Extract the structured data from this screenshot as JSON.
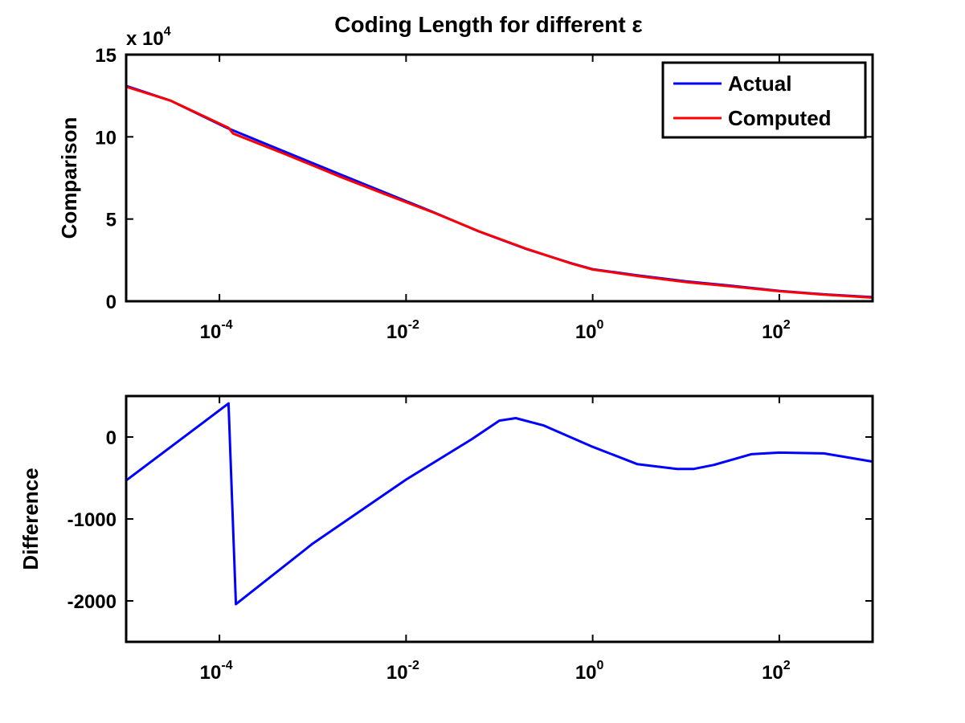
{
  "chart_data": [
    {
      "type": "line",
      "title": "Coding Length for different ε",
      "xlabel": "",
      "ylabel": "Comparison",
      "xscale": "log",
      "xlim": [
        1e-05,
        1000
      ],
      "ylim": [
        0,
        150000
      ],
      "x_ticks": [
        0.0001,
        0.01,
        1,
        100
      ],
      "x_tick_labels": [
        {
          "base": "10",
          "exp": "-4"
        },
        {
          "base": "10",
          "exp": "-2"
        },
        {
          "base": "10",
          "exp": "0"
        },
        {
          "base": "10",
          "exp": "2"
        }
      ],
      "y_ticks": [
        0,
        50000,
        100000,
        150000
      ],
      "y_tick_labels": [
        "0",
        "5",
        "10",
        "15"
      ],
      "y_multiplier": {
        "text": "x 10",
        "exp": "4"
      },
      "grid": false,
      "legend_position": "top-right",
      "series": [
        {
          "name": "Actual",
          "color": "#0000ff",
          "x": [
            1e-05,
            3e-05,
            0.00012,
            0.0005,
            0.002,
            0.006,
            0.02,
            0.06,
            0.2,
            0.6,
            1,
            3,
            10,
            30,
            100,
            300,
            1000
          ],
          "y": [
            131000,
            122000,
            105500,
            91000,
            77000,
            66000,
            54000,
            42500,
            31500,
            23000,
            19500,
            15800,
            12100,
            9500,
            6300,
            4200,
            2500
          ]
        },
        {
          "name": "Computed",
          "color": "#ff0000",
          "x": [
            1e-05,
            3e-05,
            0.000125,
            0.00014,
            0.0005,
            0.002,
            0.006,
            0.02,
            0.06,
            0.2,
            0.6,
            1,
            3,
            10,
            30,
            100,
            300,
            1000
          ],
          "y": [
            130500,
            122000,
            105500,
            102000,
            89600,
            75600,
            65100,
            53800,
            42600,
            31700,
            22800,
            19300,
            15400,
            11700,
            9100,
            6100,
            4000,
            2200
          ]
        }
      ]
    },
    {
      "type": "line",
      "title": "",
      "xlabel": "",
      "ylabel": "Difference",
      "xscale": "log",
      "xlim": [
        1e-05,
        1000
      ],
      "ylim": [
        -2500,
        500
      ],
      "x_ticks": [
        0.0001,
        0.01,
        1,
        100
      ],
      "x_tick_labels": [
        {
          "base": "10",
          "exp": "-4"
        },
        {
          "base": "10",
          "exp": "-2"
        },
        {
          "base": "10",
          "exp": "0"
        },
        {
          "base": "10",
          "exp": "2"
        }
      ],
      "y_ticks": [
        -2000,
        -1000,
        0
      ],
      "y_tick_labels": [
        "-2000",
        "-1000",
        "0"
      ],
      "grid": false,
      "series": [
        {
          "color": "#0000ff",
          "x": [
            1e-05,
            0.000125,
            0.00015,
            0.001,
            0.01,
            0.05,
            0.1,
            0.15,
            0.3,
            1,
            3,
            8,
            12,
            20,
            50,
            100,
            300,
            1000
          ],
          "y": [
            -530,
            410,
            -2040,
            -1300,
            -520,
            -30,
            200,
            230,
            140,
            -120,
            -330,
            -390,
            -390,
            -340,
            -210,
            -190,
            -200,
            -300
          ]
        }
      ]
    }
  ]
}
